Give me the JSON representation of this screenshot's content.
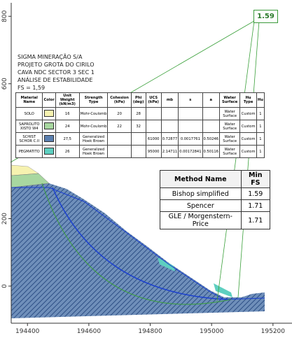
{
  "axes": {
    "xticks": [
      194400,
      194600,
      194800,
      195000,
      195200
    ],
    "yticks": [
      0,
      200,
      600,
      800
    ],
    "xlim": [
      194347,
      195262
    ],
    "ylim": [
      -110,
      840
    ]
  },
  "label_box": "1.59",
  "header": [
    "SIGMA MINERAÇÃO S/A",
    "PROJETO GROTA DO CIRILO",
    "CAVA NDC SECTOR 3 SEC 1",
    "ANÁLISE DE ESTABILIDADE",
    "FS = 1,59"
  ],
  "materials": {
    "columns": [
      "Material Name",
      "Color",
      "Unit Weight (kN/m3)",
      "Strength Type",
      "Cohesion (kPa)",
      "Phi (deg)",
      "UCS (kPa)",
      "mb",
      "s",
      "a",
      "Water Surface",
      "Hu Type",
      "Hu"
    ],
    "rows": [
      {
        "name": "SOLO",
        "color": "#f6f2b0",
        "cells": [
          "16",
          "Mohr-Coulomb",
          "20",
          "28",
          null,
          null,
          null,
          null,
          "Water Surface",
          "Custom",
          "1"
        ]
      },
      {
        "name": "SAPROLITO XISTO W4",
        "color": "#a8d7a0",
        "cells": [
          "24",
          "Mohr-Coulomb",
          "22",
          "32",
          null,
          null,
          null,
          null,
          "Water Surface",
          "Custom",
          "1"
        ]
      },
      {
        "name": "SCHIST SCHOR C.II",
        "color": "#5a7fb0",
        "cells": [
          "27,5",
          "Generalized Hoek Brown",
          null,
          null,
          "61000",
          "0.72877",
          "0.0017761",
          "0.50246",
          "Water Surface",
          "Custom",
          "1"
        ]
      },
      {
        "name": "PEGMATITO",
        "color": "#5ecfc0",
        "cells": [
          "26",
          "Generalized Hoek Brown",
          null,
          null,
          "95000",
          "2.14711",
          "0.00172841",
          "0.50116",
          "Water Surface",
          "Custom",
          "1"
        ]
      }
    ]
  },
  "fs_table": {
    "columns": [
      "Method Name",
      "Min FS"
    ],
    "rows": [
      [
        "Bishop simplified",
        "1.59"
      ],
      [
        "Spencer",
        "1.71"
      ],
      [
        "GLE / Morgenstern-Price",
        "1.71"
      ]
    ]
  }
}
